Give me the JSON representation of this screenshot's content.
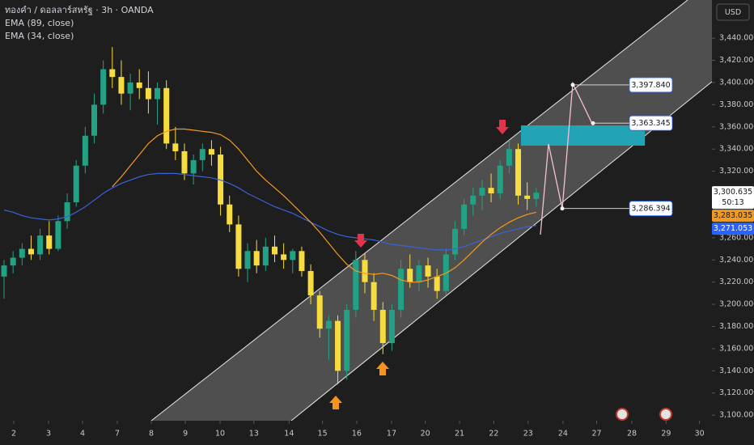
{
  "chart_data": {
    "type": "candlestick",
    "title": "ทองคำ / ดอลลาร์สหรัฐ · 3h · OANDA",
    "currency": "USD",
    "x": [
      0,
      1,
      2,
      3,
      4,
      5,
      6,
      7,
      8,
      9,
      10,
      11,
      12,
      13,
      14,
      15,
      16,
      17,
      18,
      19,
      20,
      21,
      22,
      23,
      24,
      25,
      26,
      27,
      28,
      29,
      30,
      31,
      32,
      33,
      34,
      35,
      36,
      37,
      38,
      39,
      40,
      41,
      42,
      43,
      44,
      45,
      46,
      47,
      48,
      49,
      50,
      51,
      52,
      53,
      54,
      55,
      56,
      57,
      58,
      59
    ],
    "open": [
      3225,
      3235,
      3242,
      3250,
      3245,
      3262,
      3250,
      3275,
      3292,
      3325,
      3352,
      3380,
      3412,
      3405,
      3390,
      3400,
      3395,
      3385,
      3395,
      3345,
      3338,
      3318,
      3330,
      3340,
      3335,
      3290,
      3272,
      3232,
      3248,
      3235,
      3252,
      3245,
      3240,
      3248,
      3230,
      3208,
      3178,
      3185,
      3140,
      3195,
      3240,
      3220,
      3195,
      3165,
      3195,
      3232,
      3220,
      3235,
      3225,
      3212,
      3245,
      3268,
      3290,
      3298,
      3305,
      3300,
      3325,
      3340,
      3298,
      3295
    ],
    "high": [
      3240,
      3248,
      3255,
      3262,
      3268,
      3275,
      3280,
      3300,
      3330,
      3360,
      3390,
      3420,
      3432,
      3420,
      3408,
      3412,
      3410,
      3400,
      3402,
      3360,
      3345,
      3335,
      3345,
      3348,
      3342,
      3298,
      3280,
      3255,
      3258,
      3260,
      3262,
      3255,
      3250,
      3252,
      3236,
      3212,
      3190,
      3190,
      3200,
      3248,
      3246,
      3228,
      3202,
      3200,
      3240,
      3245,
      3240,
      3242,
      3232,
      3250,
      3275,
      3295,
      3305,
      3312,
      3318,
      3330,
      3348,
      3345,
      3310,
      3305
    ],
    "low": [
      3205,
      3228,
      3235,
      3240,
      3240,
      3245,
      3248,
      3268,
      3288,
      3318,
      3345,
      3372,
      3395,
      3380,
      3375,
      3385,
      3372,
      3362,
      3340,
      3330,
      3312,
      3308,
      3320,
      3325,
      3280,
      3265,
      3225,
      3220,
      3228,
      3230,
      3238,
      3232,
      3228,
      3225,
      3200,
      3170,
      3150,
      3128,
      3132,
      3188,
      3210,
      3185,
      3155,
      3158,
      3188,
      3215,
      3212,
      3215,
      3205,
      3208,
      3240,
      3262,
      3280,
      3285,
      3292,
      3295,
      3318,
      3290,
      3285,
      3288
    ],
    "close": [
      3235,
      3242,
      3250,
      3245,
      3262,
      3250,
      3275,
      3292,
      3325,
      3352,
      3380,
      3412,
      3405,
      3390,
      3400,
      3395,
      3385,
      3395,
      3345,
      3338,
      3318,
      3330,
      3340,
      3335,
      3290,
      3272,
      3232,
      3248,
      3235,
      3252,
      3245,
      3240,
      3248,
      3230,
      3208,
      3178,
      3185,
      3140,
      3195,
      3240,
      3220,
      3195,
      3165,
      3195,
      3232,
      3220,
      3235,
      3225,
      3212,
      3245,
      3268,
      3290,
      3298,
      3305,
      3300,
      3325,
      3340,
      3298,
      3295,
      3300.635
    ],
    "up_color": "#22a284",
    "down_color": "#f7dc3f",
    "series": [
      {
        "name": "EMA (89, close)",
        "color": "#3a63d8",
        "values": [
          3285,
          3283,
          3280,
          3278,
          3277,
          3276,
          3277,
          3279,
          3283,
          3288,
          3294,
          3300,
          3305,
          3309,
          3312,
          3315,
          3317,
          3318,
          3318,
          3318,
          3317,
          3316,
          3315,
          3314,
          3312,
          3309,
          3305,
          3300,
          3296,
          3292,
          3288,
          3285,
          3282,
          3278,
          3274,
          3270,
          3266,
          3263,
          3261,
          3260,
          3259,
          3258,
          3256,
          3254,
          3253,
          3252,
          3251,
          3250,
          3249,
          3249,
          3250,
          3252,
          3255,
          3258,
          3261,
          3264,
          3266,
          3268,
          3270,
          3271
        ]
      },
      {
        "name": "EMA (34, close)",
        "color": "#f39a1e",
        "values": [
          null,
          null,
          null,
          null,
          null,
          null,
          null,
          null,
          null,
          null,
          null,
          null,
          3306,
          3315,
          3325,
          3335,
          3345,
          3352,
          3356,
          3358,
          3358,
          3357,
          3356,
          3355,
          3353,
          3348,
          3340,
          3330,
          3320,
          3312,
          3305,
          3298,
          3290,
          3282,
          3274,
          3265,
          3255,
          3245,
          3236,
          3230,
          3228,
          3227,
          3228,
          3226,
          3222,
          3220,
          3220,
          3222,
          3225,
          3228,
          3233,
          3240,
          3248,
          3256,
          3263,
          3269,
          3274,
          3278,
          3281,
          3283
        ]
      }
    ],
    "xlim": [
      -0.45,
      78.48
    ],
    "ylim": [
      3095,
      3474.4
    ],
    "xticks": [
      {
        "value": 1.08,
        "label": "2"
      },
      {
        "value": 4.93,
        "label": "3"
      },
      {
        "value": 8.7,
        "label": "4"
      },
      {
        "value": 12.56,
        "label": "7"
      },
      {
        "value": 16.32,
        "label": "8"
      },
      {
        "value": 20.1,
        "label": "9"
      },
      {
        "value": 23.95,
        "label": "10"
      },
      {
        "value": 27.7,
        "label": "13"
      },
      {
        "value": 31.6,
        "label": "14"
      },
      {
        "value": 35.3,
        "label": "15"
      },
      {
        "value": 39.1,
        "label": "16"
      },
      {
        "value": 42.96,
        "label": "17"
      },
      {
        "value": 46.7,
        "label": "20"
      },
      {
        "value": 50.5,
        "label": "21"
      },
      {
        "value": 54.3,
        "label": "22"
      },
      {
        "value": 58.1,
        "label": "23"
      },
      {
        "value": 61.97,
        "label": "24"
      },
      {
        "value": 65.7,
        "label": "27"
      },
      {
        "value": 69.6,
        "label": "28"
      },
      {
        "value": 73.4,
        "label": "29"
      },
      {
        "value": 77.1,
        "label": "30"
      }
    ],
    "yticks": [
      {
        "value": 3100,
        "label": "3,100.000"
      },
      {
        "value": 3120,
        "label": "3,120.000"
      },
      {
        "value": 3140,
        "label": "3,140.000"
      },
      {
        "value": 3160,
        "label": "3,160.000"
      },
      {
        "value": 3180,
        "label": "3,180.000"
      },
      {
        "value": 3200,
        "label": "3,200.000"
      },
      {
        "value": 3220,
        "label": "3,220.000"
      },
      {
        "value": 3240,
        "label": "3,240.000"
      },
      {
        "value": 3260,
        "label": "3,260.000"
      },
      {
        "value": 3280,
        "label": "3,280.000"
      },
      {
        "value": 3300,
        "label": "3,300.000"
      },
      {
        "value": 3320,
        "label": "3,320.000"
      },
      {
        "value": 3340,
        "label": "3,340.000"
      },
      {
        "value": 3360,
        "label": "3,360.000"
      },
      {
        "value": 3380,
        "label": "3,380.000"
      },
      {
        "value": 3400,
        "label": "3,400.000"
      },
      {
        "value": 3420,
        "label": "3,420.000"
      },
      {
        "value": 3440,
        "label": "3,440.000"
      }
    ],
    "price_tags": [
      {
        "value": 3300.635,
        "label": "3,300.635",
        "color": "#ffffff",
        "text_color": "#131722"
      },
      {
        "value": 3283.035,
        "label": "3,283.035",
        "color": "#f39a1e",
        "text_color": "#131722"
      },
      {
        "value": 3271.053,
        "label": "3,271.053",
        "color": "#2962ff",
        "text_color": "#ffffff"
      }
    ],
    "countdown": "50:13",
    "annotations": [
      {
        "value": 3397.84,
        "label": "3,397.840"
      },
      {
        "value": 3363.345,
        "label": "3,363.345"
      },
      {
        "value": 3286.394,
        "label": "3,286.394"
      }
    ]
  }
}
